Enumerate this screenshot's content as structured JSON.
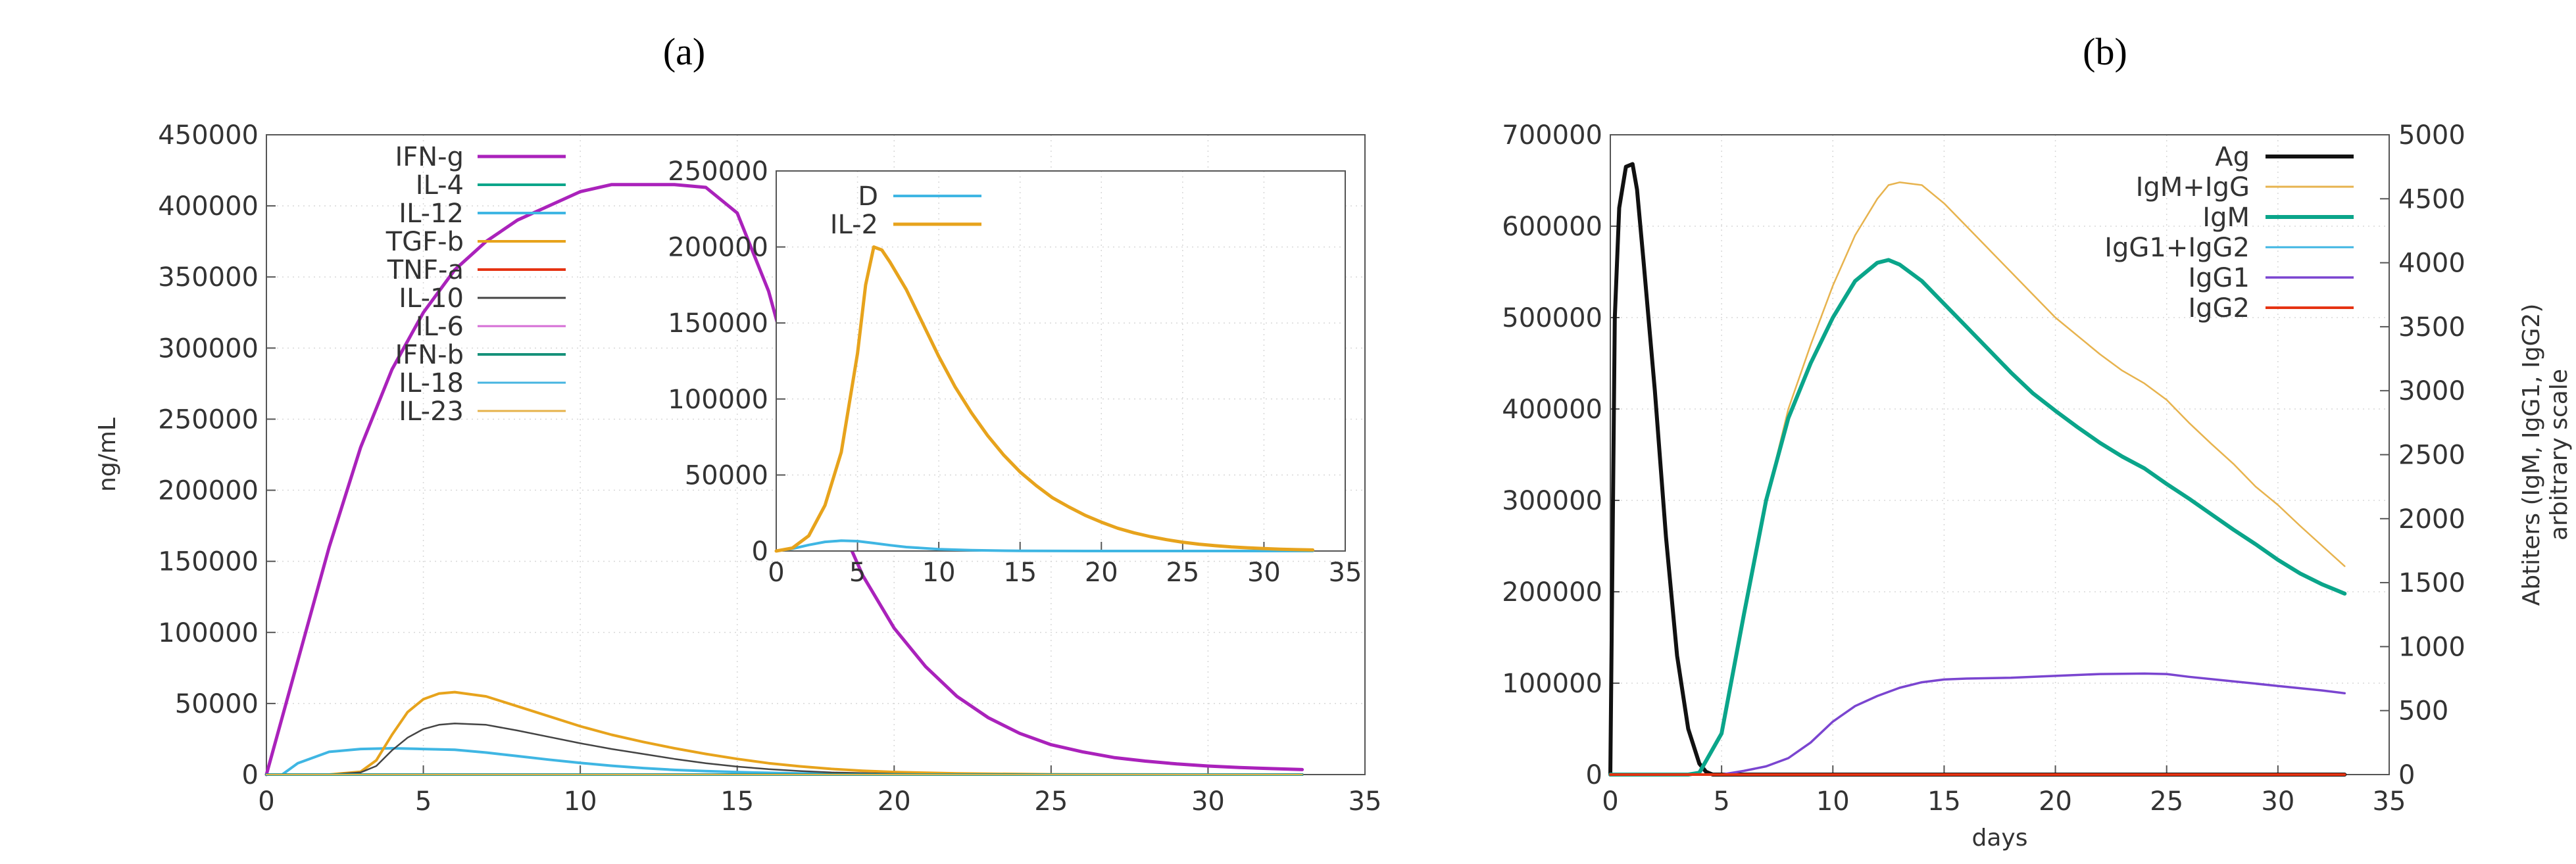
{
  "panels": {
    "a": {
      "label": "(a)"
    },
    "b": {
      "label": "(b)"
    }
  },
  "chart_data": [
    {
      "id": "a-main",
      "type": "line",
      "title": "",
      "xlabel": "",
      "ylabel": "ng/mL",
      "xlim": [
        0,
        35
      ],
      "ylim": [
        0,
        450000
      ],
      "xticks": [
        0,
        5,
        10,
        15,
        20,
        25,
        30,
        35
      ],
      "yticks": [
        0,
        50000,
        100000,
        150000,
        200000,
        250000,
        300000,
        350000,
        400000,
        450000
      ],
      "grid": true,
      "legend_placement": "top-left",
      "series": [
        {
          "name": "IFN-g",
          "color": "#aa22bb",
          "width": 5,
          "x": [
            0,
            1,
            2,
            3,
            4,
            5,
            6,
            7,
            8,
            9,
            10,
            11,
            12,
            13,
            14,
            15,
            16,
            17,
            18,
            19,
            20,
            21,
            22,
            23,
            24,
            25,
            26,
            27,
            28,
            29,
            30,
            31,
            32,
            33
          ],
          "y": [
            0,
            80000,
            160000,
            230000,
            285000,
            325000,
            355000,
            375000,
            390000,
            400000,
            410000,
            415000,
            415000,
            415000,
            413000,
            395000,
            340000,
            260000,
            190000,
            140000,
            103000,
            76000,
            55000,
            40000,
            29000,
            21000,
            16000,
            12000,
            9500,
            7500,
            6000,
            5000,
            4200,
            3500
          ]
        },
        {
          "name": "IL-4",
          "color": "#0aa58a",
          "width": 4,
          "x": [
            0,
            33
          ],
          "y": [
            0,
            0
          ]
        },
        {
          "name": "IL-12",
          "color": "#3fb6e3",
          "width": 4,
          "x": [
            0,
            0.5,
            1,
            2,
            3,
            4,
            5,
            6,
            7,
            8,
            9,
            10,
            11,
            12,
            13,
            14,
            15,
            16,
            17,
            18,
            20,
            22,
            25,
            30,
            33
          ],
          "y": [
            0,
            0,
            8000,
            16000,
            18000,
            18500,
            18000,
            17500,
            15500,
            13000,
            10500,
            8200,
            6200,
            4600,
            3300,
            2400,
            1700,
            1200,
            800,
            500,
            250,
            100,
            0,
            0,
            0
          ]
        },
        {
          "name": "TGF-b",
          "color": "#e7a31c",
          "width": 4,
          "x": [
            0,
            2,
            3,
            3.5,
            4,
            4.5,
            5,
            5.5,
            6,
            7,
            8,
            9,
            10,
            11,
            12,
            13,
            14,
            15,
            16,
            17,
            18,
            19,
            20,
            22,
            25,
            30,
            33
          ],
          "y": [
            0,
            0,
            2000,
            10000,
            28000,
            44000,
            53000,
            57000,
            58000,
            55000,
            48000,
            41000,
            34000,
            28000,
            23000,
            18500,
            14500,
            11000,
            8000,
            5800,
            4000,
            2700,
            1800,
            800,
            200,
            0,
            0
          ]
        },
        {
          "name": "TNF-a",
          "color": "#e53312",
          "width": 4,
          "x": [
            0,
            33
          ],
          "y": [
            0,
            0
          ]
        },
        {
          "name": "IL-10",
          "color": "#444444",
          "width": 2.5,
          "x": [
            0,
            2,
            3,
            3.5,
            4,
            4.5,
            5,
            5.5,
            6,
            7,
            8,
            9,
            10,
            11,
            12,
            13,
            14,
            15,
            16,
            17,
            18,
            20,
            22,
            25,
            33
          ],
          "y": [
            0,
            0,
            1500,
            6000,
            17000,
            26000,
            32000,
            35000,
            36000,
            35000,
            31000,
            26500,
            22000,
            18000,
            14500,
            11000,
            8000,
            5600,
            3800,
            2500,
            1500,
            500,
            100,
            0,
            0
          ]
        },
        {
          "name": "IL-6",
          "color": "#d66ed6",
          "width": 2,
          "x": [
            0,
            33
          ],
          "y": [
            0,
            0
          ]
        },
        {
          "name": "IFN-b",
          "color": "#16917a",
          "width": 4,
          "x": [
            0,
            33
          ],
          "y": [
            0,
            0
          ]
        },
        {
          "name": "IL-18",
          "color": "#46b4e0",
          "width": 2.5,
          "x": [
            0,
            33
          ],
          "y": [
            0,
            0
          ]
        },
        {
          "name": "IL-23",
          "color": "#e6b24a",
          "width": 2,
          "x": [
            0,
            33
          ],
          "y": [
            0,
            0
          ]
        }
      ]
    },
    {
      "id": "a-inset",
      "type": "line",
      "title": "",
      "xlabel": "",
      "ylabel": "",
      "xlim": [
        0,
        35
      ],
      "ylim": [
        0,
        250000
      ],
      "xticks": [
        0,
        5,
        10,
        15,
        20,
        25,
        30,
        35
      ],
      "yticks": [
        0,
        50000,
        100000,
        150000,
        200000,
        250000
      ],
      "grid": true,
      "legend_placement": "top",
      "series": [
        {
          "name": "D",
          "color": "#3fb6e3",
          "width": 4,
          "x": [
            0,
            1,
            2,
            3,
            4,
            5,
            6,
            7,
            8,
            10,
            12,
            15,
            20,
            25,
            33
          ],
          "y": [
            0,
            1500,
            4000,
            6000,
            6800,
            6500,
            5200,
            3800,
            2600,
            1200,
            500,
            100,
            0,
            0,
            0
          ]
        },
        {
          "name": "IL-2",
          "color": "#e7a31c",
          "width": 5,
          "x": [
            0,
            1,
            2,
            3,
            4,
            5,
            5.5,
            6,
            6.5,
            7,
            8,
            9,
            10,
            11,
            12,
            13,
            14,
            15,
            16,
            17,
            18,
            19,
            20,
            21,
            22,
            23,
            24,
            25,
            26,
            27,
            28,
            29,
            30,
            31,
            32,
            33
          ],
          "y": [
            0,
            2000,
            10000,
            30000,
            65000,
            130000,
            175000,
            200000,
            198000,
            190000,
            172000,
            150000,
            128000,
            108000,
            91000,
            76000,
            63000,
            52000,
            43000,
            35000,
            29000,
            23500,
            19000,
            15000,
            12000,
            9500,
            7500,
            5800,
            4500,
            3500,
            2700,
            2100,
            1600,
            1200,
            900,
            700
          ]
        }
      ]
    },
    {
      "id": "b",
      "type": "line",
      "title": "",
      "xlabel": "days",
      "ylabel": "",
      "y2label": [
        "Abtiters (IgM, IgG1, IgG2)",
        "arbitrary scale"
      ],
      "xlim": [
        0,
        35
      ],
      "ylim": [
        0,
        700000
      ],
      "y2lim": [
        0,
        5000
      ],
      "xticks": [
        0,
        5,
        10,
        15,
        20,
        25,
        30,
        35
      ],
      "yticks": [
        0,
        100000,
        200000,
        300000,
        400000,
        500000,
        600000,
        700000
      ],
      "y2ticks": [
        0,
        500,
        1000,
        1500,
        2000,
        2500,
        3000,
        3500,
        4000,
        4500,
        5000
      ],
      "grid": true,
      "legend_placement": "top-right",
      "series": [
        {
          "name": "Ag",
          "color": "#111111",
          "width": 6,
          "x": [
            0,
            0.2,
            0.4,
            0.7,
            1,
            1.2,
            1.5,
            2,
            2.5,
            3,
            3.5,
            4,
            4.3,
            4.6,
            5,
            33
          ],
          "y": [
            0,
            500000,
            620000,
            665000,
            668000,
            640000,
            560000,
            420000,
            260000,
            130000,
            50000,
            12000,
            3000,
            0,
            0,
            0
          ]
        },
        {
          "name": "IgM+IgG",
          "color": "#e7b34e",
          "width": 2.5,
          "x": [
            0,
            3.5,
            4,
            5,
            6,
            7,
            8,
            9,
            10,
            11,
            12,
            12.5,
            13,
            14,
            15,
            16,
            17,
            18,
            19,
            20,
            21,
            22,
            23,
            24,
            25,
            26,
            27,
            28,
            29,
            30,
            31,
            32,
            33
          ],
          "y": [
            0,
            0,
            2000,
            45000,
            175000,
            300000,
            400000,
            470000,
            535000,
            590000,
            630000,
            645000,
            648000,
            645000,
            625000,
            600000,
            575000,
            550000,
            525000,
            500000,
            480000,
            460000,
            442000,
            428000,
            410000,
            385000,
            362000,
            340000,
            315000,
            295000,
            272000,
            250000,
            228000
          ],
          "axis": "y2",
          "y2": [
            0,
            0,
            14,
            321,
            1250,
            2143,
            2857,
            3357,
            3821,
            4214,
            4500,
            4607,
            4629,
            4607,
            4464,
            4286,
            4107,
            3929,
            3750,
            3571,
            3429,
            3286,
            3157,
            3057,
            2929,
            2750,
            2586,
            2429,
            2250,
            2107,
            1943,
            1786,
            1629
          ]
        },
        {
          "name": "IgM",
          "color": "#0aa58a",
          "width": 6,
          "x": [
            0,
            3.5,
            4,
            5,
            6,
            7,
            8,
            9,
            10,
            11,
            12,
            12.5,
            13,
            14,
            15,
            16,
            17,
            18,
            19,
            20,
            21,
            22,
            23,
            24,
            25,
            26,
            27,
            28,
            29,
            30,
            31,
            32,
            33
          ],
          "y": [
            0,
            0,
            2000,
            45000,
            175000,
            300000,
            390000,
            450000,
            500000,
            540000,
            560000,
            563000,
            558000,
            540000,
            515000,
            490000,
            465000,
            440000,
            417000,
            398000,
            380000,
            363000,
            348000,
            335000,
            318000,
            302000,
            285000,
            268000,
            252000,
            235000,
            220000,
            208000,
            198000
          ]
        },
        {
          "name": "IgG1+IgG2",
          "color": "#3fb6e3",
          "width": 3,
          "x": [
            0,
            33
          ],
          "y": [
            0,
            0
          ]
        },
        {
          "name": "IgG1",
          "color": "#7a45d0",
          "width": 3.5,
          "x": [
            0,
            5,
            6,
            7,
            8,
            9,
            10,
            11,
            12,
            13,
            14,
            15,
            16,
            18,
            20,
            22,
            24,
            25,
            26,
            28,
            30,
            32,
            33
          ],
          "y": [
            0,
            0,
            4000,
            9000,
            18000,
            35000,
            58000,
            75000,
            86000,
            95000,
            101000,
            104000,
            105000,
            106000,
            108000,
            110000,
            110500,
            110000,
            107000,
            102000,
            97000,
            92000,
            89000
          ]
        },
        {
          "name": "IgG2",
          "color": "#e53312",
          "width": 4,
          "x": [
            0,
            33
          ],
          "y": [
            0,
            0
          ]
        }
      ]
    }
  ]
}
